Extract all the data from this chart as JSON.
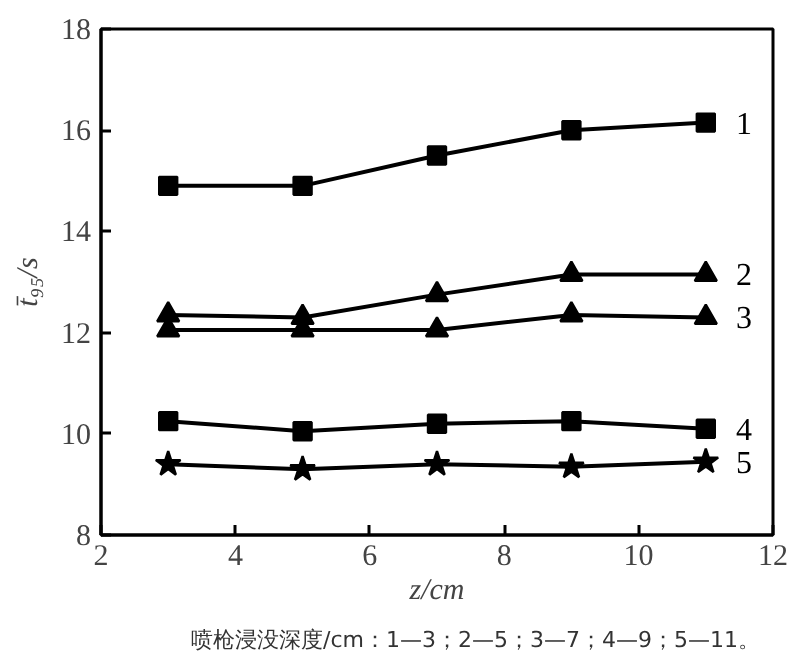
{
  "chart_data": {
    "type": "line",
    "xlabel": "z/cm",
    "ylabel": "t̄₉₅/s",
    "x": [
      3,
      5,
      7,
      9,
      11
    ],
    "series": [
      {
        "name": "1",
        "color": "#000000",
        "marker": "square",
        "values": [
          14.9,
          14.9,
          15.5,
          16.0,
          16.15
        ]
      },
      {
        "name": "2",
        "color": "#000000",
        "marker": "triangle",
        "values": [
          12.35,
          12.3,
          12.75,
          13.15,
          13.15
        ]
      },
      {
        "name": "3",
        "color": "#000000",
        "marker": "triangle",
        "values": [
          12.05,
          12.05,
          12.05,
          12.35,
          12.3
        ]
      },
      {
        "name": "4",
        "color": "#000000",
        "marker": "square",
        "values": [
          10.25,
          10.05,
          10.2,
          10.25,
          10.1
        ]
      },
      {
        "name": "5",
        "color": "#000000",
        "marker": "star",
        "values": [
          9.4,
          9.3,
          9.4,
          9.35,
          9.45
        ]
      }
    ],
    "xlim": [
      2,
      12
    ],
    "ylim": [
      8,
      18
    ],
    "xticks": [
      2,
      4,
      6,
      8,
      10,
      12
    ],
    "yticks": [
      8,
      10,
      12,
      14,
      16,
      18
    ],
    "grid": false,
    "legend": false,
    "line_style": "solid",
    "annotations": [
      "喷枪浸没深度/cm：1—3；2—5；3—7；4—9；5—11。"
    ]
  }
}
